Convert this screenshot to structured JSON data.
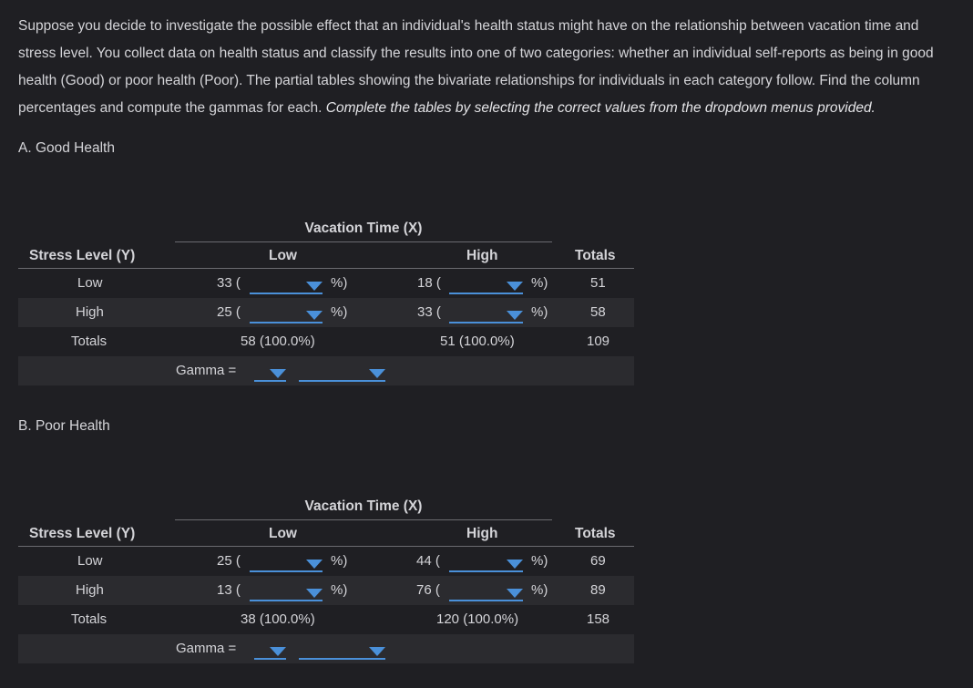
{
  "intro": {
    "line1": "Suppose you decide to investigate the possible effect that an individual's health status might have on the relationship between vacation time and",
    "line2": "stress level. You collect data on health status and classify the results into one of two categories: whether an individual self-reports as being in good",
    "line3": "health (Good) or poor health (Poor). The partial tables showing the bivariate relationships for individuals in each category follow. Find the column",
    "line4_plain": "percentages and compute the gammas for each. ",
    "line4_italic": "Complete the tables by selecting the correct values from the dropdown menus provided."
  },
  "tables": [
    {
      "label": "A. Good Health",
      "vacation_header": "Vacation Time (X)",
      "stress_header": "Stress Level (Y)",
      "low_header": "Low",
      "high_header": "High",
      "totals_header": "Totals",
      "rows": [
        {
          "label": "Low",
          "low_count": "33 (",
          "high_count": "18 (",
          "pct_close": "%)",
          "total": "51"
        },
        {
          "label": "High",
          "low_count": "25 (",
          "high_count": "33 (",
          "pct_close": "%)",
          "total": "58"
        }
      ],
      "totals": {
        "label": "Totals",
        "low": "58 (100.0%)",
        "high": "51 (100.0%)",
        "total": "109"
      },
      "gamma_label": "Gamma ="
    },
    {
      "label": "B. Poor Health",
      "vacation_header": "Vacation Time (X)",
      "stress_header": "Stress Level (Y)",
      "low_header": "Low",
      "high_header": "High",
      "totals_header": "Totals",
      "rows": [
        {
          "label": "Low",
          "low_count": "25 (",
          "high_count": "44 (",
          "pct_close": "%)",
          "total": "69"
        },
        {
          "label": "High",
          "low_count": "13 (",
          "high_count": "76 (",
          "pct_close": "%)",
          "total": "89"
        }
      ],
      "totals": {
        "label": "Totals",
        "low": "38 (100.0%)",
        "high": "120 (100.0%)",
        "total": "158"
      },
      "gamma_label": "Gamma ="
    }
  ],
  "colors": {
    "background": "#1f1f23",
    "accent": "#4a90d9",
    "shaded_row": "#2b2b2f",
    "text": "#d4d4d8"
  },
  "icons": {
    "dropdown": "caret-down-icon"
  }
}
